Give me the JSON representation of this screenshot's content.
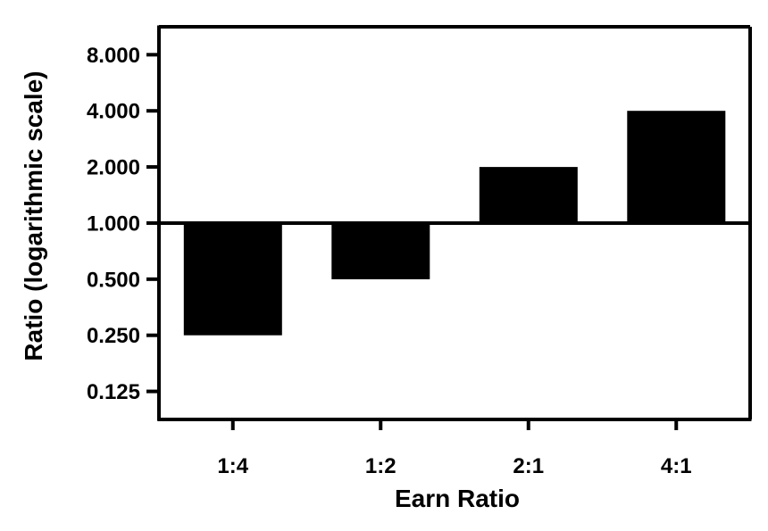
{
  "chart_data": {
    "type": "bar",
    "title": "",
    "xlabel": "Earn Ratio",
    "ylabel": "Ratio (logarithmic scale)",
    "y_scale": "log2",
    "baseline": 1,
    "ylim": [
      0.0884,
      11.3
    ],
    "y_ticks": [
      {
        "value": 0.125,
        "label": "0.125"
      },
      {
        "value": 0.25,
        "label": "0.250"
      },
      {
        "value": 0.5,
        "label": "0.500"
      },
      {
        "value": 1,
        "label": "1.000"
      },
      {
        "value": 2,
        "label": "2.000"
      },
      {
        "value": 4,
        "label": "4.000"
      },
      {
        "value": 8,
        "label": "8.000"
      }
    ],
    "categories": [
      "1:4",
      "1:2",
      "2:1",
      "4:1"
    ],
    "values": [
      0.25,
      0.5,
      2,
      4
    ],
    "bar_color": "#000000",
    "grid": false,
    "legend": "none"
  }
}
